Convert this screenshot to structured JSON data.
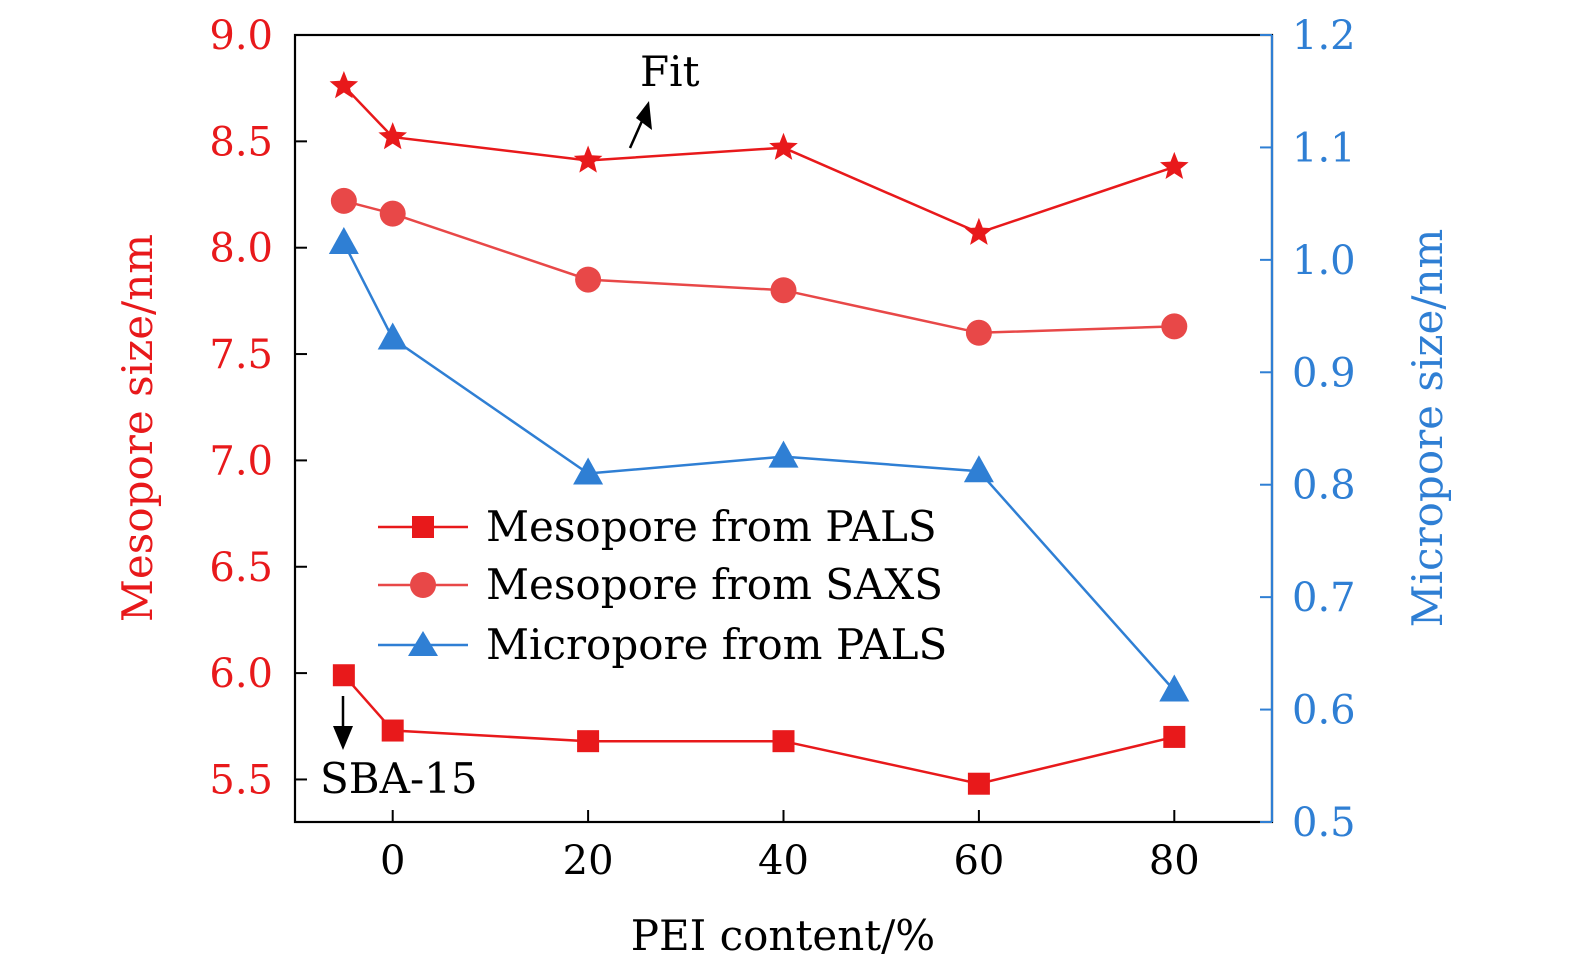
{
  "chart_data": {
    "type": "line",
    "xlabel": "PEI content/%",
    "ylabel_left": "Mesopore size/nm",
    "ylabel_right": "Micropore size/nm",
    "xlim": [
      -10,
      90
    ],
    "ylim_left": [
      5.3,
      9.0
    ],
    "ylim_right": [
      0.5,
      1.2
    ],
    "xticks": [
      0,
      20,
      40,
      60,
      80
    ],
    "xtick_labels": [
      "0",
      "20",
      "40",
      "60",
      "80"
    ],
    "yticks_left": [
      5.5,
      6.0,
      6.5,
      7.0,
      7.5,
      8.0,
      8.5,
      9.0
    ],
    "ytick_labels_left": [
      "5.5",
      "6.0",
      "6.5",
      "7.0",
      "7.5",
      "8.0",
      "8.5",
      "9.0"
    ],
    "yticks_right": [
      0.5,
      0.6,
      0.7,
      0.8,
      0.9,
      1.0,
      1.1,
      1.2
    ],
    "ytick_labels_right": [
      "0.5",
      "0.6",
      "0.7",
      "0.8",
      "0.9",
      "1.0",
      "1.1",
      "1.2"
    ],
    "colors": {
      "left_axis": "#e8191b",
      "right_axis": "#2f7fd4",
      "pals_meso": "#e8191b",
      "saxs_meso": "#e84848",
      "pals_micro": "#2f7fd4"
    },
    "series": [
      {
        "name": "Mesopore from PALS",
        "axis": "left",
        "marker": "square",
        "x": [
          -5,
          0,
          20,
          40,
          60,
          80
        ],
        "values": [
          5.99,
          5.73,
          5.68,
          5.68,
          5.48,
          5.7
        ]
      },
      {
        "name": "Mesopore from SAXS",
        "axis": "left",
        "marker": "circle",
        "x": [
          -5,
          0,
          20,
          40,
          60,
          80
        ],
        "values": [
          8.22,
          8.16,
          7.85,
          7.8,
          7.6,
          7.63
        ]
      },
      {
        "name": "Micropore from PALS",
        "axis": "right",
        "marker": "triangle",
        "x": [
          -5,
          0,
          20,
          40,
          60,
          80
        ],
        "values": [
          1.015,
          0.93,
          0.81,
          0.825,
          0.812,
          0.617
        ]
      },
      {
        "name": "Fit",
        "axis": "left",
        "marker": "star",
        "legend": false,
        "x": [
          -5,
          0,
          20,
          40,
          60,
          80
        ],
        "values": [
          8.76,
          8.52,
          8.41,
          8.47,
          8.07,
          8.38
        ]
      }
    ],
    "annotations": [
      {
        "text": "Fit",
        "points_to": "Fit series"
      },
      {
        "text": "SBA-15",
        "points_to": "first data point (x = -5)"
      }
    ]
  }
}
